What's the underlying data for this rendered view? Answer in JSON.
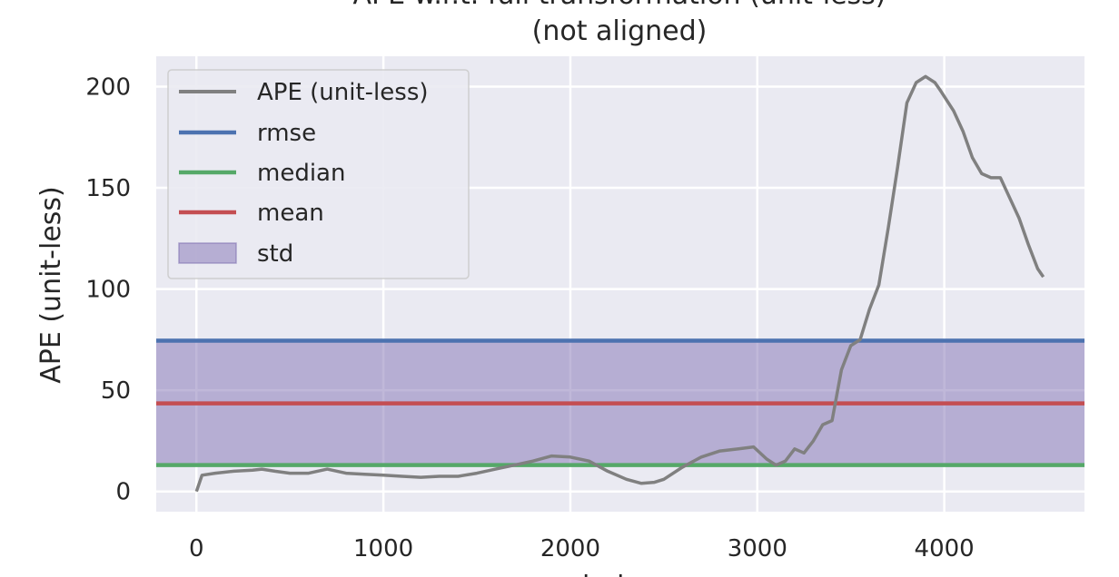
{
  "chart_data": {
    "type": "line",
    "title_line1": "APE w.r.t. full transformation (unit-less)",
    "title_line2": "(not aligned)",
    "xlabel": "index",
    "ylabel": "APE (unit-less)",
    "xlim": [
      -215,
      4750
    ],
    "ylim": [
      -10,
      215
    ],
    "xticks": [
      0,
      1000,
      2000,
      3000,
      4000
    ],
    "yticks": [
      0,
      50,
      100,
      150,
      200
    ],
    "xtick_labels": [
      "0",
      "1000",
      "2000",
      "3000",
      "4000"
    ],
    "ytick_labels": [
      "0",
      "50",
      "100",
      "150",
      "200"
    ],
    "grid": true,
    "legend_position": "upper-left",
    "legend": [
      "APE (unit-less)",
      "rmse",
      "median",
      "mean",
      "std"
    ],
    "series": [
      {
        "name": "APE (unit-less)",
        "color": "#808080",
        "x": [
          0,
          30,
          100,
          200,
          300,
          350,
          420,
          500,
          600,
          700,
          800,
          900,
          1000,
          1100,
          1200,
          1300,
          1400,
          1500,
          1600,
          1700,
          1800,
          1900,
          2000,
          2100,
          2200,
          2300,
          2380,
          2450,
          2500,
          2600,
          2700,
          2800,
          2900,
          2980,
          3050,
          3100,
          3150,
          3200,
          3250,
          3300,
          3350,
          3400,
          3450,
          3500,
          3550,
          3600,
          3650,
          3700,
          3750,
          3800,
          3850,
          3900,
          3950,
          3980,
          4050,
          4100,
          4150,
          4200,
          4250,
          4300,
          4350,
          4400,
          4450,
          4500,
          4530
        ],
        "y": [
          0,
          8,
          9,
          10,
          10.5,
          11,
          10,
          9,
          9,
          11,
          9,
          8.5,
          8,
          7.5,
          7,
          7.5,
          7.5,
          9,
          11,
          13,
          15,
          17.5,
          17,
          15,
          10,
          6,
          4,
          4.5,
          6,
          12,
          17,
          20,
          21,
          22,
          16,
          13,
          15,
          21,
          19,
          25,
          33,
          35,
          60,
          72,
          75,
          90,
          102,
          130,
          160,
          192,
          202,
          205,
          202,
          198,
          188,
          178,
          165,
          157,
          155,
          155,
          145,
          135,
          122,
          110,
          106
        ]
      },
      {
        "name": "rmse",
        "color": "#4c72b0",
        "value": 74.5
      },
      {
        "name": "median",
        "color": "#55a868",
        "value": 13
      },
      {
        "name": "mean",
        "color": "#c44e52",
        "value": 43.5
      },
      {
        "name": "std",
        "color": "#8172b3",
        "range": [
          13,
          74.5
        ]
      }
    ]
  }
}
